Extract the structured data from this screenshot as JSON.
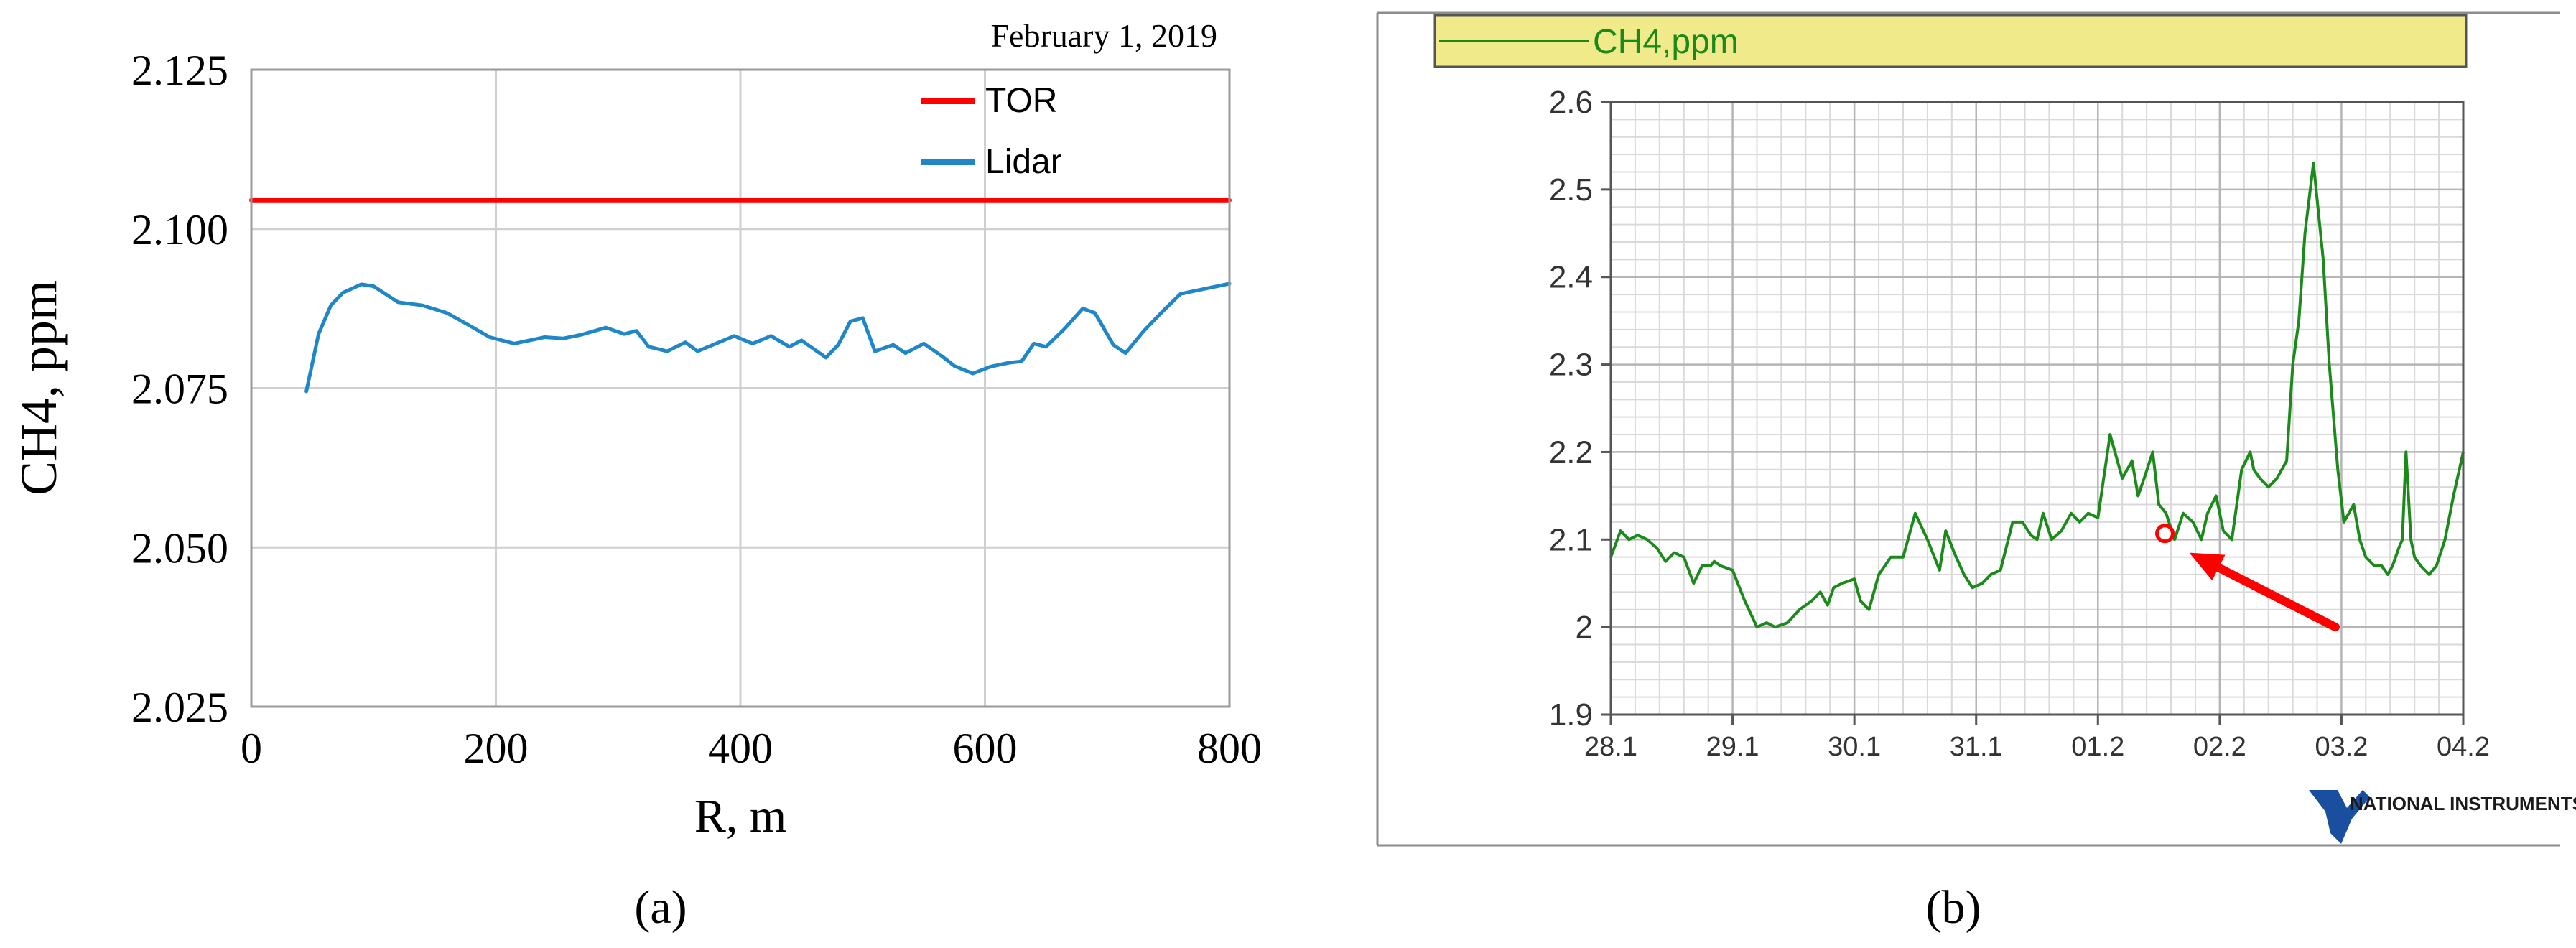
{
  "chart_data": [
    {
      "panel_label": "(a)",
      "type": "line",
      "date_label": "February 1, 2019",
      "xlabel": "R, m",
      "ylabel": "CH4, ppm",
      "xlim": [
        0,
        800
      ],
      "ylim": [
        2.025,
        2.125
      ],
      "xticks": [
        "0",
        "200",
        "400",
        "600",
        "800"
      ],
      "yticks": [
        "2.025",
        "2.050",
        "2.075",
        "2.100",
        "2.125"
      ],
      "grid": true,
      "legend_position": "top-right",
      "series": [
        {
          "name": "TOR",
          "color": "#ff0000",
          "x": [
            0,
            800
          ],
          "y": [
            2.1045,
            2.1045
          ]
        },
        {
          "name": "Lidar",
          "color": "#1f86c8",
          "x": [
            45,
            55,
            65,
            75,
            90,
            100,
            120,
            140,
            160,
            175,
            195,
            215,
            240,
            255,
            270,
            290,
            305,
            315,
            325,
            340,
            355,
            365,
            380,
            395,
            410,
            425,
            440,
            450,
            470,
            480,
            490,
            500,
            510,
            525,
            535,
            550,
            565,
            575,
            590,
            605,
            620,
            630,
            640,
            650,
            665,
            680,
            690,
            705,
            715,
            730,
            745,
            760,
            780,
            800
          ],
          "y": [
            2.0745,
            2.0835,
            2.088,
            2.09,
            2.0913,
            2.091,
            2.0885,
            2.088,
            2.0868,
            2.0852,
            2.083,
            2.082,
            2.083,
            2.0828,
            2.0834,
            2.0845,
            2.0835,
            2.084,
            2.0815,
            2.0808,
            2.0822,
            2.0808,
            2.082,
            2.0832,
            2.082,
            2.0832,
            2.0815,
            2.0825,
            2.0798,
            2.0818,
            2.0855,
            2.086,
            2.0808,
            2.0818,
            2.0805,
            2.082,
            2.08,
            2.0785,
            2.0773,
            2.0784,
            2.079,
            2.0792,
            2.082,
            2.0815,
            2.0843,
            2.0875,
            2.0868,
            2.0818,
            2.0805,
            2.084,
            2.087,
            2.0898,
            2.0906,
            2.0914
          ]
        }
      ]
    },
    {
      "panel_label": "(b)",
      "type": "line",
      "legend_label": "CH4,ppm",
      "xlim": [
        0,
        7
      ],
      "ylim": [
        1.9,
        2.6
      ],
      "xticks": [
        "28.1",
        "29.1",
        "30.1",
        "31.1",
        "01.2",
        "02.2",
        "03.2",
        "04.2"
      ],
      "yticks": [
        "1.9",
        "2",
        "2.1",
        "2.2",
        "2.3",
        "2.4",
        "2.5",
        "2.6"
      ],
      "grid": true,
      "logo_text": "NATIONAL INSTRUMENTS",
      "series": [
        {
          "name": "CH4,ppm",
          "color": "#1b8a1b",
          "x": [
            0.0,
            0.08,
            0.15,
            0.22,
            0.3,
            0.38,
            0.45,
            0.52,
            0.6,
            0.68,
            0.75,
            0.82,
            0.85,
            0.9,
            1.0,
            1.1,
            1.2,
            1.28,
            1.35,
            1.45,
            1.55,
            1.65,
            1.72,
            1.78,
            1.83,
            1.9,
            2.0,
            2.05,
            2.12,
            2.2,
            2.3,
            2.4,
            2.5,
            2.6,
            2.7,
            2.75,
            2.82,
            2.9,
            2.97,
            3.05,
            3.12,
            3.2,
            3.3,
            3.38,
            3.45,
            3.5,
            3.55,
            3.62,
            3.7,
            3.78,
            3.85,
            3.92,
            4.0,
            4.1,
            4.2,
            4.28,
            4.33,
            4.38,
            4.45,
            4.5,
            4.56,
            4.63,
            4.7,
            4.78,
            4.85,
            4.9,
            4.97,
            5.03,
            5.1,
            5.18,
            5.25,
            5.28,
            5.33,
            5.4,
            5.47,
            5.55,
            5.6,
            5.65,
            5.7,
            5.77,
            5.85,
            5.9,
            5.97,
            6.02,
            6.1,
            6.15,
            6.2,
            6.27,
            6.33,
            6.38,
            6.42,
            6.47,
            6.5,
            6.53,
            6.57,
            6.6,
            6.65,
            6.72,
            6.78,
            6.85,
            6.92,
            7.0
          ],
          "y": [
            2.08,
            2.11,
            2.1,
            2.105,
            2.1,
            2.09,
            2.075,
            2.085,
            2.08,
            2.05,
            2.07,
            2.07,
            2.075,
            2.07,
            2.065,
            2.03,
            2.0,
            2.005,
            2.0,
            2.005,
            2.02,
            2.03,
            2.04,
            2.025,
            2.045,
            2.05,
            2.055,
            2.03,
            2.02,
            2.06,
            2.08,
            2.08,
            2.13,
            2.1,
            2.065,
            2.11,
            2.085,
            2.06,
            2.045,
            2.05,
            2.06,
            2.065,
            2.12,
            2.12,
            2.105,
            2.1,
            2.13,
            2.1,
            2.11,
            2.13,
            2.12,
            2.13,
            2.125,
            2.22,
            2.17,
            2.19,
            2.15,
            2.17,
            2.2,
            2.14,
            2.13,
            2.1,
            2.13,
            2.12,
            2.1,
            2.13,
            2.15,
            2.11,
            2.1,
            2.18,
            2.2,
            2.18,
            2.17,
            2.16,
            2.17,
            2.19,
            2.3,
            2.35,
            2.45,
            2.53,
            2.42,
            2.3,
            2.18,
            2.12,
            2.14,
            2.1,
            2.08,
            2.07,
            2.07,
            2.06,
            2.07,
            2.09,
            2.1,
            2.2,
            2.1,
            2.08,
            2.07,
            2.06,
            2.07,
            2.1,
            2.15,
            2.2
          ]
        }
      ],
      "annotations": [
        {
          "type": "circle-marker",
          "x": 4.55,
          "y": 2.107,
          "color": "#ff0000"
        },
        {
          "type": "arrow",
          "from": [
            5.95,
            2.0
          ],
          "to": [
            4.75,
            2.085
          ],
          "color": "#ff0000"
        }
      ]
    }
  ]
}
